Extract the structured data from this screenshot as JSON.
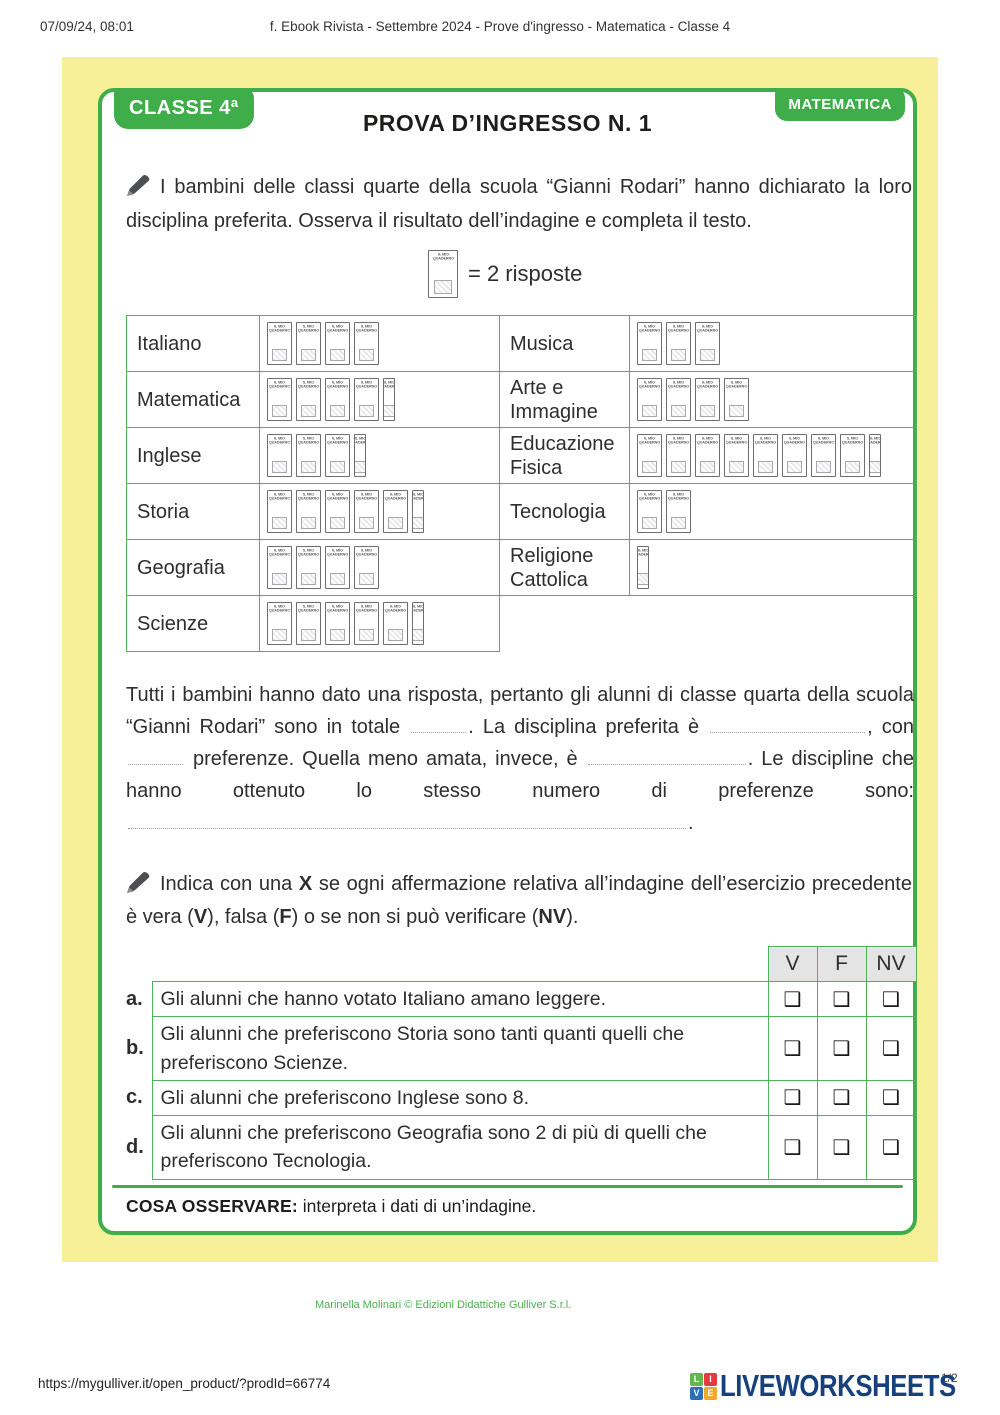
{
  "browser": {
    "datetime": "07/09/24, 08:01",
    "doc_title": "f. Ebook Rivista - Settembre 2024 - Prove d'ingresso - Matematica - Classe 4",
    "url": "https://mygulliver.it/open_product/?prodId=66774",
    "page_indicator": "1/2"
  },
  "header": {
    "class_badge": "CLASSE 4ª",
    "title": "PROVA D’INGRESSO N. 1",
    "subject_badge": "MATEMATICA"
  },
  "exercise1": {
    "instruction": "I bambini delle classi quarte della scuola “Gianni Rodari” hanno dichiarato la loro disciplina preferita. Osserva il risultato dell’indagine e completa il testo.",
    "legend": "= 2 risposte",
    "notebook": {
      "line1": "IL MIO",
      "line2": "QUADERNO"
    }
  },
  "survey": {
    "left": [
      {
        "label": "Italiano",
        "icons": 4
      },
      {
        "label": "Matematica",
        "icons": 4.5
      },
      {
        "label": "Inglese",
        "icons": 3.5
      },
      {
        "label": "Storia",
        "icons": 5.5
      },
      {
        "label": "Geografia",
        "icons": 4
      },
      {
        "label": "Scienze",
        "icons": 5.5
      }
    ],
    "right": [
      {
        "label": "Musica",
        "icons": 3
      },
      {
        "label": "Arte e Immagine",
        "icons": 4
      },
      {
        "label": "Educazione Fisica",
        "icons": 8.5
      },
      {
        "label": "Tecnologia",
        "icons": 2
      },
      {
        "label": "Religione Cattolica",
        "icons": 0.5
      }
    ]
  },
  "chart_data": {
    "type": "pictogram",
    "unit_per_icon": 2,
    "legend": "1 quaderno = 2 risposte",
    "categories": [
      "Italiano",
      "Matematica",
      "Inglese",
      "Storia",
      "Geografia",
      "Scienze",
      "Musica",
      "Arte e Immagine",
      "Educazione Fisica",
      "Tecnologia",
      "Religione Cattolica"
    ],
    "icons": [
      4,
      4.5,
      3.5,
      5.5,
      4,
      5.5,
      3,
      4,
      8.5,
      2,
      0.5
    ],
    "values": [
      8,
      9,
      7,
      11,
      8,
      11,
      6,
      8,
      17,
      4,
      1
    ]
  },
  "fill_text": {
    "segments": [
      {
        "t": "Tutti i bambini hanno dato una risposta, pertanto gli alunni di classe quarta della scuola “Gianni Rodari” sono in totale "
      },
      {
        "blank": 55
      },
      {
        "t": ". La disciplina preferita è "
      },
      {
        "blank": 155
      },
      {
        "t": ", con "
      },
      {
        "blank": 55
      },
      {
        "t": " preferenze. Quella meno amata, invece, è "
      },
      {
        "blank": 158
      },
      {
        "t": ". Le discipline che hanno ottenuto lo stesso numero di preferenze sono: "
      },
      {
        "blank": 558
      },
      {
        "t": "."
      }
    ]
  },
  "exercise2": {
    "instruction_segments": [
      {
        "t": "Indica con una "
      },
      {
        "t": "X",
        "b": true
      },
      {
        "t": " se ogni affermazione relativa all’indagine dell’esercizio precedente è vera ("
      },
      {
        "t": "V",
        "b": true
      },
      {
        "t": "), falsa ("
      },
      {
        "t": "F",
        "b": true
      },
      {
        "t": ") o se non si può verificare ("
      },
      {
        "t": "NV",
        "b": true
      },
      {
        "t": ")."
      }
    ],
    "columns": [
      "V",
      "F",
      "NV"
    ],
    "checkbox_glyph": "❑",
    "rows": [
      {
        "letter": "a.",
        "text": "Gli alunni che hanno votato Italiano amano leggere."
      },
      {
        "letter": "b.",
        "text": "Gli alunni che preferiscono Storia sono tanti quanti quelli che preferiscono Scienze."
      },
      {
        "letter": "c.",
        "text": "Gli alunni che preferiscono Inglese sono 8."
      },
      {
        "letter": "d.",
        "text": "Gli alunni che preferiscono Geografia sono 2 di più di quelli che preferiscono Tecnologia."
      }
    ]
  },
  "observe": {
    "label": "COSA OSSERVARE:",
    "text": " interpreta i dati di un’indagine."
  },
  "credits": "Marinella Molinari © Edizioni Didattiche Gulliver S.r.l.",
  "logo": {
    "text": "LIVEWORKSHEETS",
    "squares": [
      {
        "letter": "L",
        "color": "#61b84e"
      },
      {
        "letter": "I",
        "color": "#e23c41"
      },
      {
        "letter": "V",
        "color": "#2e6eb6"
      },
      {
        "letter": "E",
        "color": "#f1a72b"
      }
    ]
  }
}
